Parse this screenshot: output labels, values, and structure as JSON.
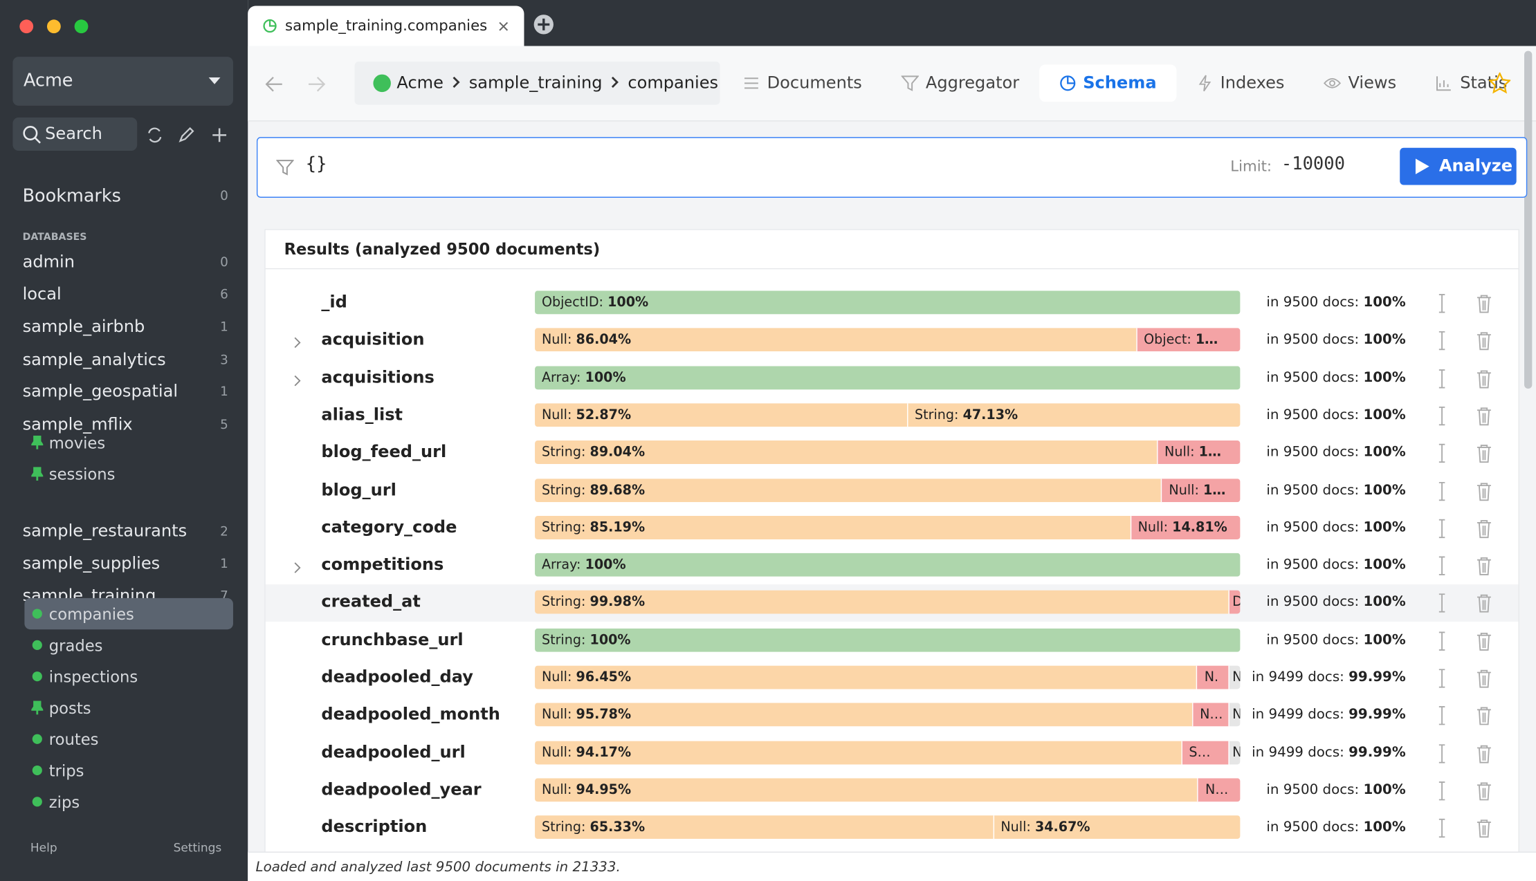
{
  "window": {
    "tab_title": "sample_training.companies"
  },
  "sidebar": {
    "connection": "Acme",
    "search": "Search",
    "bookmarks": {
      "label": "Bookmarks",
      "count": 0
    },
    "databases_heading": "DATABASES",
    "databases": [
      {
        "name": "admin",
        "count": 0
      },
      {
        "name": "local",
        "count": 6
      },
      {
        "name": "sample_airbnb",
        "count": 1
      },
      {
        "name": "sample_analytics",
        "count": 3
      },
      {
        "name": "sample_geospatial",
        "count": 1
      },
      {
        "name": "sample_mflix",
        "count": 5,
        "collections": [
          {
            "name": "movies",
            "icon": "pin"
          },
          {
            "name": "sessions",
            "icon": "pin"
          }
        ]
      },
      {
        "name": "sample_restaurants",
        "count": 2
      },
      {
        "name": "sample_supplies",
        "count": 1
      },
      {
        "name": "sample_training",
        "count": 7,
        "collections": [
          {
            "name": "companies",
            "icon": "dot",
            "selected": true
          },
          {
            "name": "grades",
            "icon": "dot"
          },
          {
            "name": "inspections",
            "icon": "dot"
          },
          {
            "name": "posts",
            "icon": "pin"
          },
          {
            "name": "routes",
            "icon": "dot"
          },
          {
            "name": "trips",
            "icon": "dot"
          },
          {
            "name": "zips",
            "icon": "dot"
          }
        ]
      }
    ],
    "footer": {
      "help": "Help",
      "settings": "Settings"
    }
  },
  "toolbar": {
    "breadcrumb": [
      "Acme",
      "sample_training",
      "companies"
    ],
    "tabs": [
      "Documents",
      "Aggregator",
      "Schema",
      "Indexes",
      "Views",
      "Statis"
    ],
    "active_tab": 2
  },
  "query": {
    "filter": "{}",
    "limit_label": "Limit:",
    "limit": "-10000",
    "button": "Analyze"
  },
  "results": {
    "heading": "Results (analyzed 9500 documents)",
    "fields": [
      {
        "name": "_id",
        "expandable": false,
        "segments": [
          {
            "type": "ObjectID:",
            "label": "100%",
            "value": 100,
            "color": "#aed6ac"
          }
        ],
        "docs": "in 9500 docs:",
        "percent": "100%"
      },
      {
        "name": "acquisition",
        "expandable": true,
        "segments": [
          {
            "type": "Null:",
            "label": "86.04%",
            "value": 86.04,
            "color": "#fcd6a8"
          },
          {
            "type": "Object:",
            "label": "1…",
            "value": 13.96,
            "color": "#f4a3a5"
          }
        ],
        "docs": "in 9500 docs:",
        "percent": "100%"
      },
      {
        "name": "acquisitions",
        "expandable": true,
        "segments": [
          {
            "type": "Array:",
            "label": "100%",
            "value": 100,
            "color": "#aed6ac"
          }
        ],
        "docs": "in 9500 docs:",
        "percent": "100%"
      },
      {
        "name": "alias_list",
        "expandable": false,
        "segments": [
          {
            "type": "Null:",
            "label": "52.87%",
            "value": 52.87,
            "color": "#fcd6a8"
          },
          {
            "type": "String:",
            "label": "47.13%",
            "value": 47.13,
            "color": "#fcd6a8"
          }
        ],
        "docs": "in 9500 docs:",
        "percent": "100%"
      },
      {
        "name": "blog_feed_url",
        "expandable": false,
        "segments": [
          {
            "type": "String:",
            "label": "89.04%",
            "value": 89.04,
            "color": "#fcd6a8"
          },
          {
            "type": "Null:",
            "label": "1…",
            "value": 10.96,
            "color": "#f4a3a5"
          }
        ],
        "docs": "in 9500 docs:",
        "percent": "100%"
      },
      {
        "name": "blog_url",
        "expandable": false,
        "segments": [
          {
            "type": "String:",
            "label": "89.68%",
            "value": 89.68,
            "color": "#fcd6a8"
          },
          {
            "type": "Null:",
            "label": "1…",
            "value": 10.32,
            "color": "#f4a3a5"
          }
        ],
        "docs": "in 9500 docs:",
        "percent": "100%"
      },
      {
        "name": "category_code",
        "expandable": false,
        "segments": [
          {
            "type": "String:",
            "label": "85.19%",
            "value": 85.19,
            "color": "#fcd6a8"
          },
          {
            "type": "Null:",
            "label": "14.81%",
            "value": 14.81,
            "color": "#f4a3a5"
          }
        ],
        "docs": "in 9500 docs:",
        "percent": "100%"
      },
      {
        "name": "competitions",
        "expandable": true,
        "segments": [
          {
            "type": "Array:",
            "label": "100%",
            "value": 100,
            "color": "#aed6ac"
          }
        ],
        "docs": "in 9500 docs:",
        "percent": "100%"
      },
      {
        "name": "created_at",
        "expandable": false,
        "hovered": true,
        "segments": [
          {
            "type": "String:",
            "label": "99.98%",
            "value": 99.98,
            "color": "#fcd6a8"
          },
          {
            "type": "D",
            "value": 0.02,
            "color": "#f4a3a5"
          }
        ],
        "docs": "in 9500 docs:",
        "percent": "100%"
      },
      {
        "name": "crunchbase_url",
        "expandable": false,
        "segments": [
          {
            "type": "String:",
            "label": "100%",
            "value": 100,
            "color": "#aed6ac"
          }
        ],
        "docs": "in 9500 docs:",
        "percent": "100%"
      },
      {
        "name": "deadpooled_day",
        "expandable": false,
        "segments": [
          {
            "type": "Null:",
            "label": "96.45%",
            "value": 96.45,
            "color": "#fcd6a8"
          },
          {
            "type": "N.",
            "value": 3.54,
            "color": "#f4a3a5"
          },
          {
            "type": "N",
            "value": 0.01,
            "color": "#e6e6e6"
          }
        ],
        "docs": "in 9499 docs:",
        "percent": "99.99%"
      },
      {
        "name": "deadpooled_month",
        "expandable": false,
        "segments": [
          {
            "type": "Null:",
            "label": "95.78%",
            "value": 95.78,
            "color": "#fcd6a8"
          },
          {
            "type": "N…",
            "value": 4.21,
            "color": "#f4a3a5"
          },
          {
            "type": "N",
            "value": 0.01,
            "color": "#e6e6e6"
          }
        ],
        "docs": "in 9499 docs:",
        "percent": "99.99%"
      },
      {
        "name": "deadpooled_url",
        "expandable": false,
        "segments": [
          {
            "type": "Null:",
            "label": "94.17%",
            "value": 94.17,
            "color": "#fcd6a8"
          },
          {
            "type": "S…",
            "value": 5.82,
            "color": "#f4a3a5"
          },
          {
            "type": "N",
            "value": 0.01,
            "color": "#e6e6e6"
          }
        ],
        "docs": "in 9499 docs:",
        "percent": "99.99%"
      },
      {
        "name": "deadpooled_year",
        "expandable": false,
        "segments": [
          {
            "type": "Null:",
            "label": "94.95%",
            "value": 94.95,
            "color": "#fcd6a8"
          },
          {
            "type": "N…",
            "value": 5.05,
            "color": "#f4a3a5"
          }
        ],
        "docs": "in 9500 docs:",
        "percent": "100%"
      },
      {
        "name": "description",
        "expandable": false,
        "segments": [
          {
            "type": "String:",
            "label": "65.33%",
            "value": 65.33,
            "color": "#fcd6a8"
          },
          {
            "type": "Null:",
            "label": "34.67%",
            "value": 34.67,
            "color": "#fcd6a8"
          }
        ],
        "docs": "in 9500 docs:",
        "percent": "100%"
      }
    ]
  },
  "status": "Loaded and analyzed last 9500 documents in 21333."
}
